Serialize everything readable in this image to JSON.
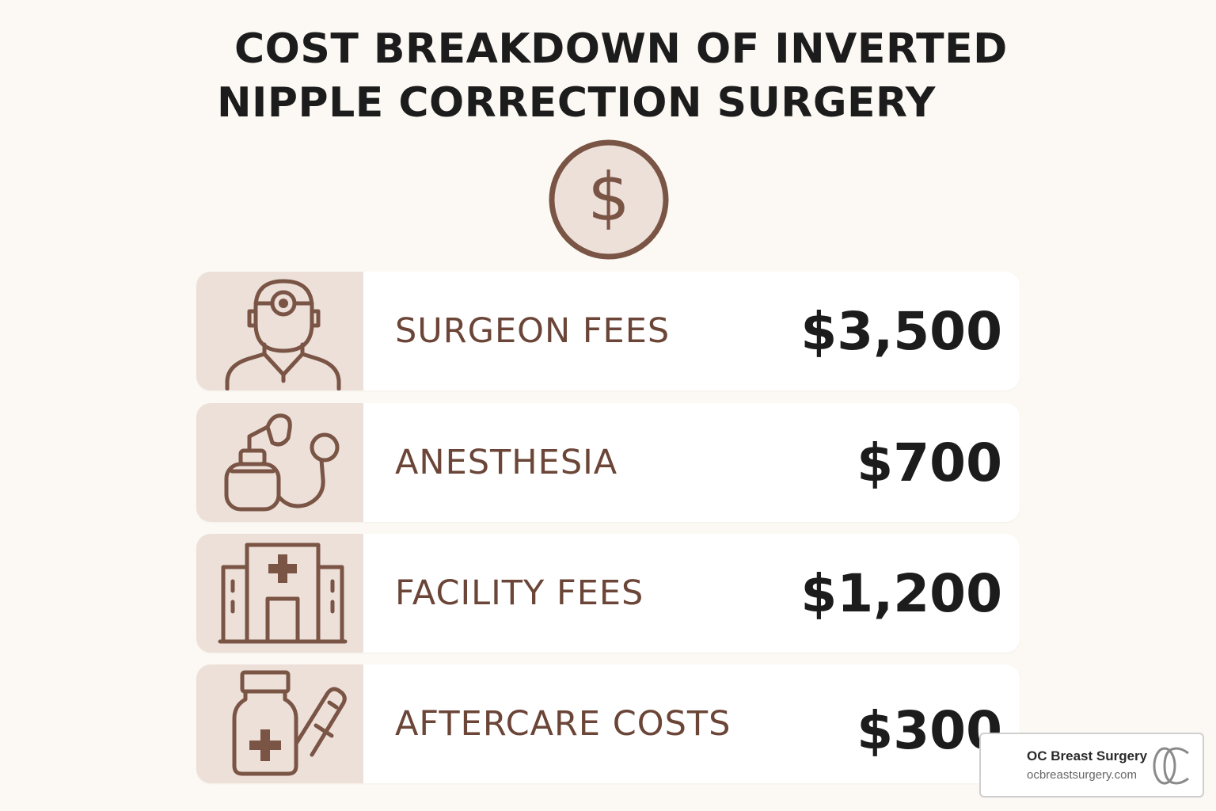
{
  "title": {
    "line1": "COST BREAKDOWN OF INVERTED",
    "line2": "NIPPLE CORRECTION SURGERY"
  },
  "header_icon": "dollar-sign-icon",
  "colors": {
    "accent_brown": "#6b4537",
    "icon_panel_bg": "#ece0d9",
    "page_bg": "#fcf9f4"
  },
  "costs": [
    {
      "label": "SURGEON FEES",
      "amount": "$3,500",
      "icon": "surgeon-icon"
    },
    {
      "label": "ANESTHESIA",
      "amount": "$700",
      "icon": "anesthesia-icon"
    },
    {
      "label": "FACILITY FEES",
      "amount": "$1,200",
      "icon": "hospital-icon"
    },
    {
      "label": "AFTERCARE COSTS",
      "amount": "$300",
      "icon": "medication-icon"
    }
  ],
  "brand": {
    "name": "OC Breast Surgery",
    "url": "ocbreastsurgery.com",
    "logo_text": "OC"
  }
}
